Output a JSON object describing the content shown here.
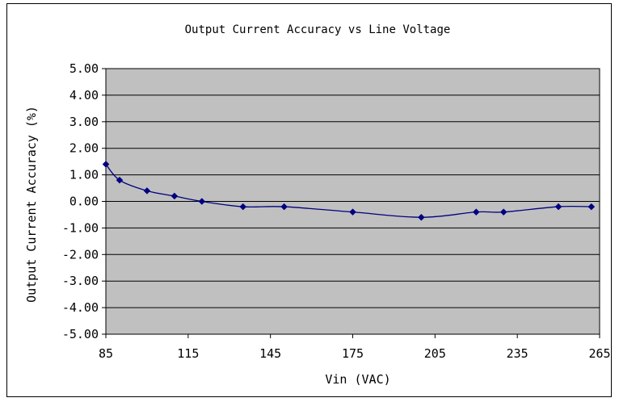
{
  "chart_data": {
    "type": "line",
    "title": "Output Current Accuracy vs Line Voltage",
    "xlabel": "Vin (VAC)",
    "ylabel": "Output Current Accuracy (%)",
    "xlim": [
      85,
      265
    ],
    "ylim": [
      -5.0,
      5.0
    ],
    "x_ticks": [
      85,
      115,
      145,
      175,
      205,
      235,
      265
    ],
    "y_ticks": [
      5.0,
      4.0,
      3.0,
      2.0,
      1.0,
      0.0,
      -1.0,
      -2.0,
      -3.0,
      -4.0,
      -5.0
    ],
    "x_tick_labels": [
      "85",
      "115",
      "145",
      "175",
      "205",
      "235",
      "265"
    ],
    "y_tick_labels": [
      "5.00",
      "4.00",
      "3.00",
      "2.00",
      "1.00",
      "0.00",
      "-1.00",
      "-2.00",
      "-3.00",
      "-4.00",
      "-5.00"
    ],
    "grid": "horizontal",
    "plot_background": "#c0c0c0",
    "series": [
      {
        "color": "#000080",
        "marker": "diamond",
        "smooth": true,
        "x": [
          85,
          90,
          100,
          110,
          120,
          135,
          150,
          175,
          200,
          220,
          230,
          250,
          262
        ],
        "y": [
          1.4,
          0.8,
          0.4,
          0.2,
          0.0,
          -0.2,
          -0.2,
          -0.4,
          -0.6,
          -0.4,
          -0.4,
          -0.2,
          -0.2
        ]
      }
    ]
  }
}
